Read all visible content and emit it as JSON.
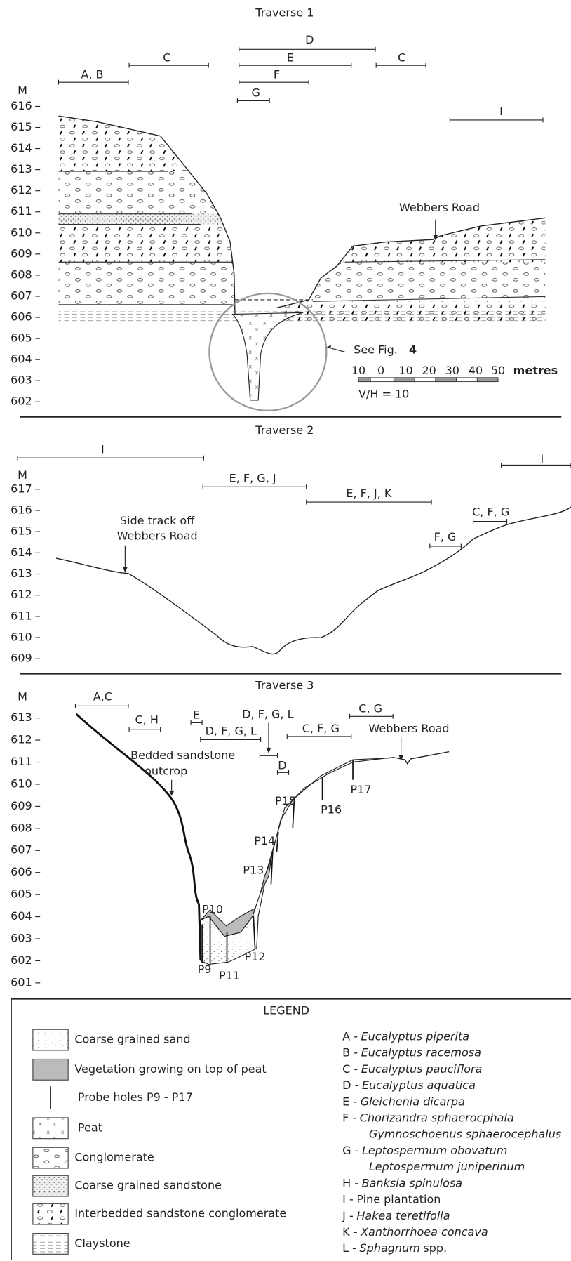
{
  "traverse1": {
    "title": "Traverse 1",
    "unit": "M",
    "ticks": [
      616,
      615,
      614,
      613,
      612,
      611,
      610,
      609,
      608,
      607,
      606,
      605,
      604,
      603,
      602
    ],
    "ranges": [
      "D",
      "C",
      "E",
      "C",
      "A, B",
      "F",
      "G",
      "I"
    ],
    "road": "Webbers Road",
    "see": "See Fig.",
    "fig": "4",
    "scale": [
      10,
      0,
      10,
      20,
      30,
      40,
      50
    ],
    "scale_unit": "metres",
    "ratio": "V/H = 10"
  },
  "traverse2": {
    "title": "Traverse 2",
    "unit": "M",
    "ticks": [
      617,
      616,
      615,
      614,
      613,
      612,
      611,
      610,
      609
    ],
    "ranges": [
      "I",
      "E, F, G, J",
      "E, F, J, K",
      "I",
      "C, F, G",
      "F, G"
    ],
    "annotation": [
      "Side track off",
      "Webbers Road"
    ]
  },
  "traverse3": {
    "title": "Traverse 3",
    "unit": "M",
    "ticks": [
      613,
      612,
      611,
      610,
      609,
      608,
      607,
      606,
      605,
      604,
      603,
      602,
      601
    ],
    "ranges": [
      "A,C",
      "C, H",
      "E",
      "D, F, G, L",
      "D, F, G, L",
      "C, F, G",
      "C, G",
      "D"
    ],
    "road": "Webbers Road",
    "outcrop": [
      "Bedded sandstone",
      "outcrop"
    ],
    "probes": [
      "P9",
      "P10",
      "P11",
      "P12",
      "P13",
      "P14",
      "P15",
      "P16",
      "P17"
    ]
  },
  "legend": {
    "title": "LEGEND",
    "items": [
      "Coarse grained sand",
      "Vegetation growing on top of peat",
      "Probe holes P9 - P17",
      "Peat",
      "Conglomerate",
      "Coarse grained sandstone",
      "Interbedded sandstone conglomerate",
      "Claystone"
    ],
    "species": [
      {
        "key": "A -",
        "names": [
          "Eucalyptus piperita"
        ]
      },
      {
        "key": "B -",
        "names": [
          "Eucalyptus racemosa"
        ]
      },
      {
        "key": "C -",
        "names": [
          "Eucalyptus pauciflora"
        ]
      },
      {
        "key": "D -",
        "names": [
          "Eucalyptus aquatica"
        ]
      },
      {
        "key": "E -",
        "names": [
          "Gleichenia dicarpa"
        ]
      },
      {
        "key": "F -",
        "names": [
          "Chorizandra sphaerocphala",
          "Gymnoschoenus sphaerocephalus"
        ]
      },
      {
        "key": "G -",
        "names": [
          "Leptospermum obovatum",
          "Leptospermum juniperinum"
        ]
      },
      {
        "key": "H -",
        "names": [
          "Banksia spinulosa"
        ]
      },
      {
        "key": "I -",
        "names": [
          "Pine plantation"
        ],
        "plain": true
      },
      {
        "key": "J -",
        "names": [
          "Hakea teretifolia"
        ]
      },
      {
        "key": "K -",
        "names": [
          "Xanthorrhoea concava"
        ]
      },
      {
        "key": "L -",
        "names": [
          "Sphagnum"
        ],
        "suffix": "spp."
      }
    ]
  }
}
